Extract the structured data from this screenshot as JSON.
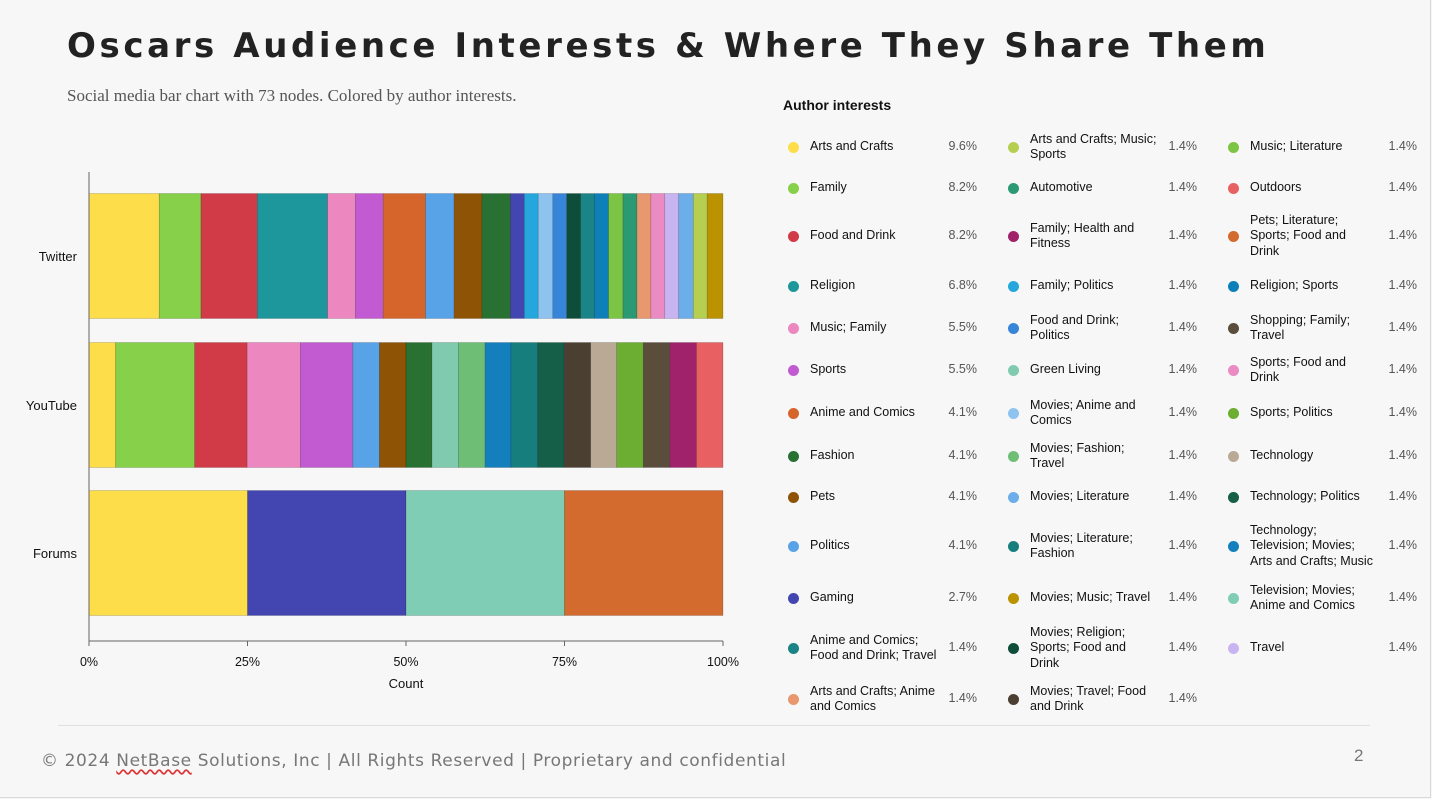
{
  "title": "Oscars Audience Interests & Where They Share Them",
  "subtitle": "Social media bar chart with 73 nodes. Colored by author interests.",
  "footer": {
    "prefix": "© 2024 ",
    "company_marked": "NetBase",
    "suffix": " Solutions, Inc | All Rights Reserved | Proprietary and confidential",
    "page_number": "2"
  },
  "legend": {
    "title": "Author interests",
    "items": [
      {
        "label": "Arts and Crafts",
        "pct": "9.6%",
        "color": "#FDDD4A"
      },
      {
        "label": "Family",
        "pct": "8.2%",
        "color": "#86D04A"
      },
      {
        "label": "Food and Drink",
        "pct": "8.2%",
        "color": "#D13A47"
      },
      {
        "label": "Religion",
        "pct": "6.8%",
        "color": "#1D979C"
      },
      {
        "label": "Music; Family",
        "pct": "5.5%",
        "color": "#EC87BF"
      },
      {
        "label": "Sports",
        "pct": "5.5%",
        "color": "#C25BD1"
      },
      {
        "label": "Anime and Comics",
        "pct": "4.1%",
        "color": "#D6652C"
      },
      {
        "label": "Fashion",
        "pct": "4.1%",
        "color": "#287132"
      },
      {
        "label": "Pets",
        "pct": "4.1%",
        "color": "#8E5304"
      },
      {
        "label": "Politics",
        "pct": "4.1%",
        "color": "#58A3E8"
      },
      {
        "label": "Gaming",
        "pct": "2.7%",
        "color": "#4346B0"
      },
      {
        "label": "Anime and Comics; Food and Drink; Travel",
        "pct": "1.4%",
        "color": "#1A8486"
      },
      {
        "label": "Arts and Crafts; Anime and Comics",
        "pct": "1.4%",
        "color": "#E8976E"
      },
      {
        "label": "Arts and Crafts; Music; Sports",
        "pct": "1.4%",
        "color": "#B6CF51"
      },
      {
        "label": "Automotive",
        "pct": "1.4%",
        "color": "#2B9A74"
      },
      {
        "label": "Family; Health and Fitness",
        "pct": "1.4%",
        "color": "#A0226A"
      },
      {
        "label": "Family; Politics",
        "pct": "1.4%",
        "color": "#25A7DD"
      },
      {
        "label": "Food and Drink; Politics",
        "pct": "1.4%",
        "color": "#3785D9"
      },
      {
        "label": "Green Living",
        "pct": "1.4%",
        "color": "#80CAAF"
      },
      {
        "label": "Movies; Anime and Comics",
        "pct": "1.4%",
        "color": "#8EC2EF"
      },
      {
        "label": "Movies; Fashion; Travel",
        "pct": "1.4%",
        "color": "#6FBE75"
      },
      {
        "label": "Movies; Literature",
        "pct": "1.4%",
        "color": "#6BAEE9"
      },
      {
        "label": "Movies; Literature; Fashion",
        "pct": "1.4%",
        "color": "#167F7E"
      },
      {
        "label": "Movies; Music; Travel",
        "pct": "1.4%",
        "color": "#BB9300"
      },
      {
        "label": "Movies; Religion; Sports; Food and Drink",
        "pct": "1.4%",
        "color": "#0E4D3A"
      },
      {
        "label": "Movies; Travel; Food and Drink",
        "pct": "1.4%",
        "color": "#4A3F30"
      },
      {
        "label": "Music; Literature",
        "pct": "1.4%",
        "color": "#7CC443"
      },
      {
        "label": "Outdoors",
        "pct": "1.4%",
        "color": "#E96062"
      },
      {
        "label": "Pets; Literature; Sports; Food and Drink",
        "pct": "1.4%",
        "color": "#D36A2E"
      },
      {
        "label": "Religion; Sports",
        "pct": "1.4%",
        "color": "#0E7FB9"
      },
      {
        "label": "Shopping; Family; Travel",
        "pct": "1.4%",
        "color": "#5B4D3C"
      },
      {
        "label": "Sports; Food and Drink",
        "pct": "1.4%",
        "color": "#EA8BC4"
      },
      {
        "label": "Sports; Politics",
        "pct": "1.4%",
        "color": "#6BAE31"
      },
      {
        "label": "Technology",
        "pct": "1.4%",
        "color": "#BAAA95"
      },
      {
        "label": "Technology; Politics",
        "pct": "1.4%",
        "color": "#155E48"
      },
      {
        "label": "Technology; Television; Movies; Arts and Crafts; Music",
        "pct": "1.4%",
        "color": "#1380BD"
      },
      {
        "label": "Television; Movies; Anime and Comics",
        "pct": "1.4%",
        "color": "#7FCDB5"
      },
      {
        "label": "Travel",
        "pct": "1.4%",
        "color": "#C8B4F0"
      }
    ]
  },
  "chart_data": {
    "type": "bar",
    "orientation": "horizontal",
    "stacked": "percent",
    "categories": [
      "Twitter",
      "YouTube",
      "Forums"
    ],
    "xlabel": "Count",
    "ylabel": "",
    "xlim": [
      0,
      100
    ],
    "xticks": [
      "0%",
      "25%",
      "50%",
      "75%",
      "100%"
    ],
    "grid": false,
    "series": [
      {
        "category": "Twitter",
        "segments": [
          {
            "interest": "Arts and Crafts",
            "color": "#FDDD4A",
            "pct": 11.1
          },
          {
            "interest": "Family",
            "color": "#86D04A",
            "pct": 6.6
          },
          {
            "interest": "Food and Drink",
            "color": "#D13A47",
            "pct": 8.9
          },
          {
            "interest": "Religion",
            "color": "#1D979C",
            "pct": 11.1
          },
          {
            "interest": "Music; Family",
            "color": "#EC87BF",
            "pct": 4.4
          },
          {
            "interest": "Sports",
            "color": "#C25BD1",
            "pct": 4.4
          },
          {
            "interest": "Anime and Comics",
            "color": "#D6652C",
            "pct": 6.7
          },
          {
            "interest": "Politics",
            "color": "#58A3E8",
            "pct": 4.5
          },
          {
            "interest": "Pets",
            "color": "#8E5304",
            "pct": 4.4
          },
          {
            "interest": "Fashion",
            "color": "#287132",
            "pct": 4.5
          },
          {
            "interest": "Gaming",
            "color": "#4346B0",
            "pct": 2.2
          },
          {
            "interest": "Family; Politics",
            "color": "#25A7DD",
            "pct": 2.2
          },
          {
            "interest": "Movies; Anime and Comics",
            "color": "#8EC2EF",
            "pct": 2.3
          },
          {
            "interest": "Food and Drink; Politics",
            "color": "#3785D9",
            "pct": 2.2
          },
          {
            "interest": "Movies; Religion; Sports; Food and Drink",
            "color": "#0E4D3A",
            "pct": 2.2
          },
          {
            "interest": "Anime and Comics; Food and Drink; Travel",
            "color": "#1A8486",
            "pct": 2.2
          },
          {
            "interest": "Religion; Sports",
            "color": "#0E7FB9",
            "pct": 2.2
          },
          {
            "interest": "Music; Literature",
            "color": "#7CC443",
            "pct": 2.3
          },
          {
            "interest": "Automotive",
            "color": "#2B9A74",
            "pct": 2.2
          },
          {
            "interest": "Arts and Crafts; Anime and Comics",
            "color": "#E8976E",
            "pct": 2.2
          },
          {
            "interest": "Sports; Food and Drink",
            "color": "#EA8BC4",
            "pct": 2.2
          },
          {
            "interest": "Travel",
            "color": "#C8B4F0",
            "pct": 2.2
          },
          {
            "interest": "Movies; Literature",
            "color": "#6BAEE9",
            "pct": 2.3
          },
          {
            "interest": "Arts and Crafts; Music; Sports",
            "color": "#B6CF51",
            "pct": 2.2
          },
          {
            "interest": "Movies; Music; Travel",
            "color": "#BB9300",
            "pct": 2.5
          }
        ]
      },
      {
        "category": "YouTube",
        "segments": [
          {
            "interest": "Arts and Crafts",
            "color": "#FDDD4A",
            "pct": 4.2
          },
          {
            "interest": "Family",
            "color": "#86D04A",
            "pct": 12.5
          },
          {
            "interest": "Food and Drink",
            "color": "#D13A47",
            "pct": 8.3
          },
          {
            "interest": "Music; Family",
            "color": "#EC87BF",
            "pct": 8.4
          },
          {
            "interest": "Sports",
            "color": "#C25BD1",
            "pct": 8.3
          },
          {
            "interest": "Politics",
            "color": "#58A3E8",
            "pct": 4.2
          },
          {
            "interest": "Pets",
            "color": "#8E5304",
            "pct": 4.2
          },
          {
            "interest": "Fashion",
            "color": "#287132",
            "pct": 4.1
          },
          {
            "interest": "Green Living",
            "color": "#80CAAF",
            "pct": 4.2
          },
          {
            "interest": "Movies; Fashion; Travel",
            "color": "#6FBE75",
            "pct": 4.2
          },
          {
            "interest": "Technology; Television; Movies; Arts and Crafts; Music",
            "color": "#1380BD",
            "pct": 4.1
          },
          {
            "interest": "Movies; Literature; Fashion",
            "color": "#167F7E",
            "pct": 4.2
          },
          {
            "interest": "Technology; Politics",
            "color": "#155E48",
            "pct": 4.2
          },
          {
            "interest": "Movies; Travel; Food and Drink",
            "color": "#4A3F30",
            "pct": 4.2
          },
          {
            "interest": "Technology",
            "color": "#BAAA95",
            "pct": 4.1
          },
          {
            "interest": "Sports; Politics",
            "color": "#6BAE31",
            "pct": 4.2
          },
          {
            "interest": "Shopping; Family; Travel",
            "color": "#5B4D3C",
            "pct": 4.2
          },
          {
            "interest": "Family; Health and Fitness",
            "color": "#A0226A",
            "pct": 4.2
          },
          {
            "interest": "Outdoors",
            "color": "#E96062",
            "pct": 4.2
          }
        ]
      },
      {
        "category": "Forums",
        "segments": [
          {
            "interest": "Arts and Crafts",
            "color": "#FDDD4A",
            "pct": 25
          },
          {
            "interest": "Gaming",
            "color": "#4346B0",
            "pct": 25
          },
          {
            "interest": "Television; Movies; Anime and Comics",
            "color": "#7FCDB5",
            "pct": 25
          },
          {
            "interest": "Pets; Literature; Sports; Food and Drink",
            "color": "#D36A2E",
            "pct": 25
          }
        ]
      }
    ]
  }
}
